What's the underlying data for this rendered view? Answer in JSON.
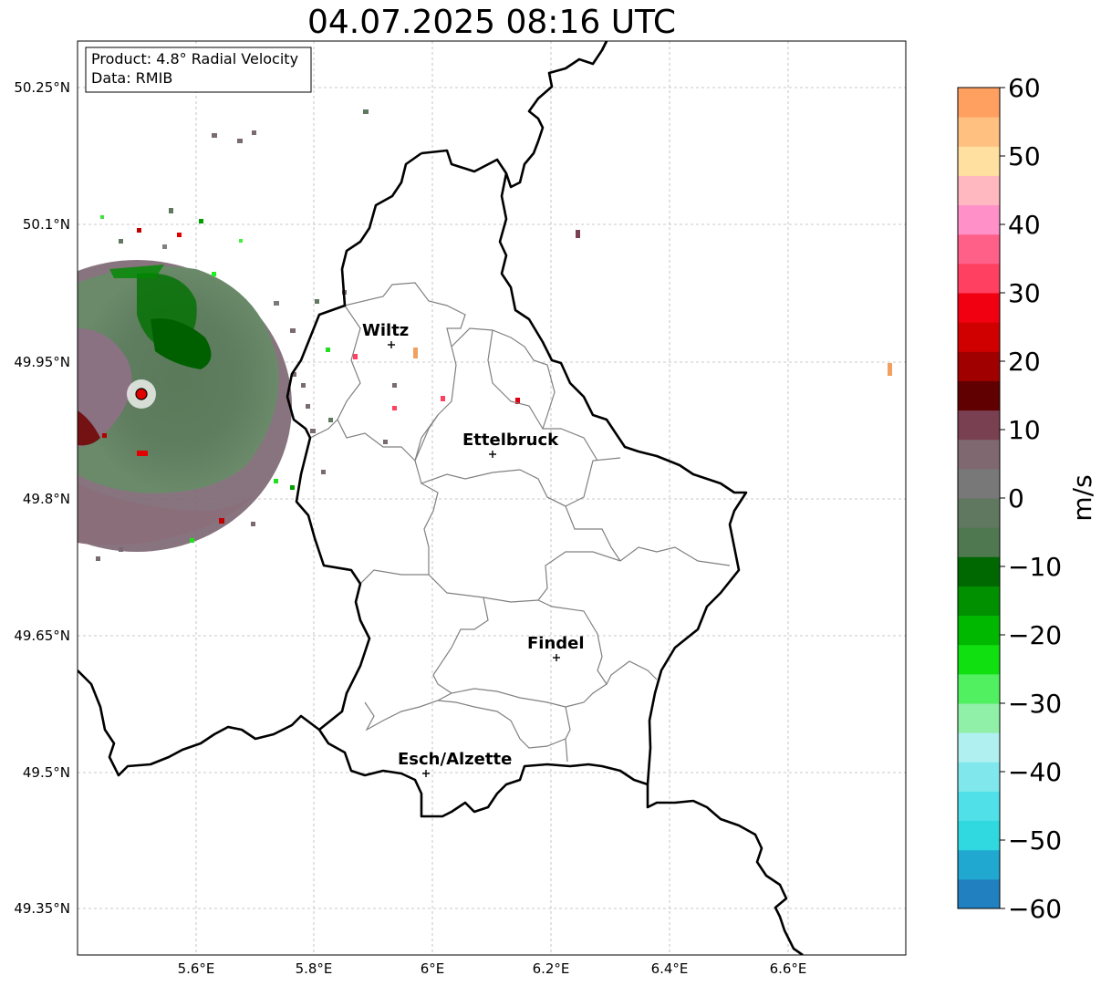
{
  "title": "04.07.2025 08:16 UTC",
  "info_box": {
    "line1": "Product: 4.8° Radial Velocity",
    "line2": "Data: RMIB"
  },
  "axes": {
    "y_ticks": [
      "50.25°N",
      "50.1°N",
      "49.95°N",
      "49.8°N",
      "49.65°N",
      "49.5°N",
      "49.35°N"
    ],
    "x_ticks": [
      "5.6°E",
      "5.8°E",
      "6°E",
      "6.2°E",
      "6.4°E",
      "6.6°E"
    ]
  },
  "cities": [
    {
      "name": "Wiltz"
    },
    {
      "name": "Ettelbruck"
    },
    {
      "name": "Findel"
    },
    {
      "name": "Esch/Alzette"
    }
  ],
  "colorbar": {
    "unit": "m/s",
    "ticks": [
      "60",
      "50",
      "40",
      "30",
      "20",
      "10",
      "0",
      "−10",
      "−20",
      "−30",
      "−40",
      "−50",
      "−60"
    ],
    "min": -60,
    "max": 60,
    "colors": [
      "#2080c0",
      "#20a8d0",
      "#30d8e0",
      "#50e0e8",
      "#80e8ec",
      "#b0f0f0",
      "#90f0a8",
      "#50f060",
      "#10e010",
      "#00b800",
      "#009000",
      "#006800",
      "#507850",
      "#607860",
      "#787878",
      "#806870",
      "#784050",
      "#600000",
      "#a00000",
      "#d00000",
      "#f00010",
      "#ff4060",
      "#ff6088",
      "#ff90c8",
      "#ffb8c0",
      "#ffe0a0",
      "#ffc080",
      "#ffa060"
    ]
  },
  "colors": {
    "border": "#000000",
    "canton": "#808080",
    "grid": "#b0b0b0",
    "radar_site": "#e00000"
  }
}
